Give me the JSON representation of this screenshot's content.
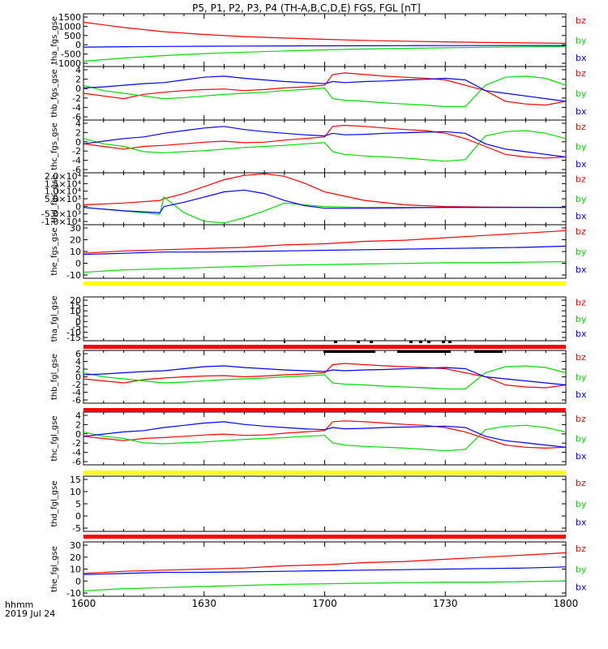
{
  "title": "P5, P1, P2, P3, P4 (TH-A,B,C,D,E) FGS, FGL [nT]",
  "time_axis": {
    "label_line1": "hhmm",
    "label_line2": "2019 Jul 24",
    "ticks": [
      "1600",
      "1630",
      "1700",
      "1730",
      "1800"
    ],
    "range_minutes": [
      0,
      120
    ]
  },
  "colors": {
    "bx": "#0000ff",
    "by": "#00dd00",
    "bz": "#ff0000",
    "yellow_bar": "#ffff00",
    "red_bar": "#ff0000",
    "black_flags": "#000000"
  },
  "chart_data": [
    {
      "type": "line",
      "ylabel": "tha_fgs_gse",
      "ylim": [
        -1000,
        1500
      ],
      "yticks": [
        "1500",
        "1000",
        "500",
        "0",
        "-500",
        "-1000"
      ],
      "legend": [
        "bz",
        "by",
        "bx"
      ],
      "x": [
        0,
        10,
        20,
        30,
        40,
        50,
        60,
        70,
        80,
        90,
        100,
        110,
        120
      ],
      "series": [
        {
          "name": "bz",
          "color": "#ff0000",
          "values": [
            1100,
            850,
            650,
            520,
            420,
            350,
            290,
            240,
            200,
            170,
            140,
            120,
            100
          ]
        },
        {
          "name": "by",
          "color": "#00dd00",
          "values": [
            -750,
            -600,
            -480,
            -390,
            -320,
            -260,
            -210,
            -170,
            -140,
            -110,
            -90,
            -70,
            -50
          ]
        },
        {
          "name": "bx",
          "color": "#0000ff",
          "values": [
            -80,
            -60,
            -50,
            -40,
            -30,
            -25,
            -20,
            -15,
            -10,
            -8,
            -6,
            -5,
            -5
          ]
        }
      ]
    },
    {
      "type": "line",
      "ylabel": "thb_fgs_gse",
      "ylim": [
        -6,
        4
      ],
      "yticks": [
        "4",
        "2",
        "0",
        "-2",
        "-4",
        "-6"
      ],
      "legend": [
        "bz",
        "by",
        "bx"
      ],
      "x": [
        0,
        5,
        10,
        15,
        20,
        25,
        30,
        35,
        40,
        45,
        50,
        55,
        60,
        62,
        65,
        70,
        75,
        80,
        85,
        90,
        95,
        100,
        105,
        110,
        115,
        120
      ],
      "series": [
        {
          "name": "bz",
          "color": "#ff0000",
          "values": [
            -1,
            -1.5,
            -2,
            -1.2,
            -0.8,
            -0.5,
            -0.3,
            -0.2,
            -0.5,
            -0.3,
            0,
            0.2,
            0.5,
            2.5,
            2.8,
            2.5,
            2.2,
            2.0,
            1.8,
            1.5,
            0.5,
            -0.5,
            -2.5,
            -3.0,
            -3.2,
            -2.5
          ]
        },
        {
          "name": "by",
          "color": "#00dd00",
          "values": [
            0.5,
            -0.5,
            -1,
            -1.5,
            -2,
            -1.8,
            -1.5,
            -1.2,
            -1.0,
            -0.8,
            -0.5,
            -0.3,
            0,
            -2.0,
            -2.3,
            -2.5,
            -2.8,
            -3.0,
            -3.2,
            -3.5,
            -3.5,
            0.5,
            2.0,
            2.2,
            1.8,
            0.5
          ]
        },
        {
          "name": "bx",
          "color": "#0000ff",
          "values": [
            0,
            0.2,
            0.5,
            0.8,
            1.0,
            1.5,
            2.0,
            2.2,
            1.8,
            1.5,
            1.2,
            1.0,
            0.8,
            1.2,
            1.0,
            1.2,
            1.3,
            1.5,
            1.6,
            1.8,
            1.5,
            -0.5,
            -1.0,
            -1.5,
            -2.0,
            -2.5
          ]
        }
      ]
    },
    {
      "type": "line",
      "ylabel": "thc_fgs_gse",
      "ylim": [
        -6,
        4
      ],
      "yticks": [
        "4",
        "2",
        "0",
        "-2",
        "-4",
        "-6"
      ],
      "legend": [
        "bz",
        "by",
        "bx"
      ],
      "x": [
        0,
        5,
        10,
        15,
        20,
        25,
        30,
        35,
        40,
        45,
        50,
        55,
        60,
        62,
        65,
        70,
        75,
        80,
        85,
        90,
        95,
        100,
        105,
        110,
        115,
        120
      ],
      "series": [
        {
          "name": "bz",
          "color": "#ff0000",
          "values": [
            -0.5,
            -1.0,
            -1.5,
            -1.0,
            -0.8,
            -0.5,
            -0.2,
            0,
            -0.3,
            -0.2,
            0.2,
            0.5,
            0.8,
            2.8,
            3.0,
            2.8,
            2.5,
            2.2,
            2.0,
            1.5,
            0.5,
            -1.0,
            -2.5,
            -3.0,
            -3.2,
            -3.0
          ]
        },
        {
          "name": "by",
          "color": "#00dd00",
          "values": [
            0.5,
            -0.5,
            -1.0,
            -2.0,
            -2.2,
            -2.0,
            -1.8,
            -1.5,
            -1.2,
            -1.0,
            -0.8,
            -0.5,
            -0.3,
            -2.0,
            -2.5,
            -2.8,
            -3.0,
            -3.2,
            -3.5,
            -3.8,
            -3.5,
            1.0,
            1.8,
            2.0,
            1.5,
            0.5
          ]
        },
        {
          "name": "bx",
          "color": "#0000ff",
          "values": [
            -0.5,
            0,
            0.5,
            0.8,
            1.5,
            2.0,
            2.5,
            2.8,
            2.2,
            1.8,
            1.5,
            1.2,
            1.0,
            1.5,
            1.2,
            1.3,
            1.5,
            1.6,
            1.7,
            1.8,
            1.5,
            -0.5,
            -1.5,
            -2.0,
            -2.5,
            -3.0
          ]
        }
      ]
    },
    {
      "type": "line",
      "ylabel": "thd_fgs_gse",
      "ylim": [
        -10000,
        20000
      ],
      "yticks": [
        "2.0×10⁴",
        "1.5×10⁴",
        "1.0×10⁴",
        "5.0×10³",
        "0",
        "-5.0×10³",
        "-1.0×10⁴"
      ],
      "legend": [
        "bz",
        "by",
        "bx"
      ],
      "x": [
        0,
        10,
        19,
        20,
        25,
        30,
        35,
        40,
        45,
        50,
        55,
        60,
        70,
        80,
        90,
        100,
        110,
        120
      ],
      "series": [
        {
          "name": "bz",
          "color": "#ff0000",
          "values": [
            1500,
            2500,
            4000,
            5000,
            8000,
            12000,
            16000,
            18500,
            19500,
            18000,
            14000,
            9000,
            4000,
            1500,
            500,
            200,
            100,
            50
          ]
        },
        {
          "name": "by",
          "color": "#00dd00",
          "values": [
            0,
            -2000,
            -4000,
            6000,
            -3000,
            -8000,
            -9000,
            -6000,
            -2000,
            2500,
            1500,
            500,
            0,
            0,
            0,
            0,
            0,
            0
          ]
        },
        {
          "name": "bx",
          "color": "#0000ff",
          "values": [
            0,
            -2000,
            -3000,
            500,
            3000,
            6000,
            9000,
            10000,
            8000,
            4000,
            1000,
            -500,
            -500,
            -200,
            0,
            0,
            0,
            0
          ]
        }
      ]
    },
    {
      "type": "line",
      "ylabel": "the_fgs_gse",
      "ylim": [
        -15,
        30
      ],
      "yticks": [
        "30",
        "20",
        "10",
        "0",
        "-10"
      ],
      "legend": [
        "bz",
        "by",
        "bx"
      ],
      "x": [
        0,
        10,
        20,
        30,
        40,
        50,
        60,
        70,
        80,
        90,
        100,
        110,
        120
      ],
      "series": [
        {
          "name": "bz",
          "color": "#ff0000",
          "values": [
            6,
            8,
            9,
            10,
            11,
            13,
            14,
            16,
            17,
            19,
            21,
            23,
            25
          ]
        },
        {
          "name": "by",
          "color": "#00dd00",
          "values": [
            -10,
            -8,
            -7,
            -6,
            -5,
            -4,
            -3.5,
            -3,
            -2.5,
            -2,
            -2,
            -1.5,
            -1
          ]
        },
        {
          "name": "bx",
          "color": "#0000ff",
          "values": [
            5,
            6,
            7,
            7,
            7.5,
            8,
            8.5,
            9,
            9.5,
            10,
            10.5,
            11,
            12
          ]
        }
      ]
    },
    {
      "type": "line",
      "ylabel": "tha_fgl_gse",
      "ylim": [
        -15,
        20
      ],
      "yticks": [
        "20",
        "15",
        "10",
        "5",
        "0",
        "-5",
        "-10",
        "-15"
      ],
      "legend": [
        "bz",
        "by",
        "bx"
      ],
      "series": []
    },
    {
      "type": "line",
      "ylabel": "thb_fgl_gse",
      "ylim": [
        -7,
        6
      ],
      "yticks": [
        "6",
        "4",
        "2",
        "0",
        "-2",
        "-4",
        "-6"
      ],
      "legend": [
        "bz",
        "by",
        "bx"
      ],
      "x": [
        0,
        5,
        10,
        15,
        20,
        25,
        30,
        35,
        40,
        45,
        50,
        55,
        60,
        62,
        65,
        70,
        75,
        80,
        85,
        90,
        95,
        100,
        105,
        110,
        115,
        120
      ],
      "series": [
        {
          "name": "bz",
          "color": "#ff0000",
          "values": [
            -1,
            -1.5,
            -2,
            -1.2,
            -0.8,
            -0.5,
            -0.3,
            -0.2,
            -0.5,
            -0.3,
            0,
            0.2,
            0.5,
            2.5,
            2.8,
            2.5,
            2.2,
            2.0,
            1.8,
            1.5,
            0.5,
            -0.5,
            -2.5,
            -3.0,
            -3.2,
            -2.5
          ]
        },
        {
          "name": "by",
          "color": "#00dd00",
          "values": [
            0.5,
            -0.5,
            -1,
            -1.5,
            -2,
            -1.8,
            -1.5,
            -1.2,
            -1.0,
            -0.8,
            -0.5,
            -0.3,
            0,
            -2.0,
            -2.3,
            -2.5,
            -2.8,
            -3.0,
            -3.2,
            -3.5,
            -3.5,
            0.5,
            2.0,
            2.2,
            1.8,
            0.5
          ]
        },
        {
          "name": "bx",
          "color": "#0000ff",
          "values": [
            0,
            0.2,
            0.5,
            0.8,
            1.0,
            1.5,
            2.0,
            2.2,
            1.8,
            1.5,
            1.2,
            1.0,
            0.8,
            1.2,
            1.0,
            1.2,
            1.3,
            1.5,
            1.6,
            1.8,
            1.5,
            -0.5,
            -1.0,
            -1.5,
            -2.0,
            -2.5
          ]
        }
      ]
    },
    {
      "type": "line",
      "ylabel": "thc_fgl_gse",
      "ylim": [
        -7,
        5
      ],
      "yticks": [
        "4",
        "2",
        "0",
        "-2",
        "-4",
        "-6"
      ],
      "legend": [
        "bz",
        "by",
        "bx"
      ],
      "x": [
        0,
        5,
        10,
        15,
        20,
        25,
        30,
        35,
        40,
        45,
        50,
        55,
        60,
        62,
        65,
        70,
        75,
        80,
        85,
        90,
        95,
        100,
        105,
        110,
        115,
        120
      ],
      "series": [
        {
          "name": "bz",
          "color": "#ff0000",
          "values": [
            -0.5,
            -1.0,
            -1.5,
            -1.0,
            -0.8,
            -0.5,
            -0.2,
            0,
            -0.3,
            -0.2,
            0.2,
            0.5,
            0.8,
            2.8,
            3.0,
            2.8,
            2.5,
            2.2,
            2.0,
            1.5,
            0.5,
            -1.0,
            -2.5,
            -3.0,
            -3.2,
            -3.0
          ]
        },
        {
          "name": "by",
          "color": "#00dd00",
          "values": [
            0.5,
            -0.5,
            -1.0,
            -2.0,
            -2.2,
            -2.0,
            -1.8,
            -1.5,
            -1.2,
            -1.0,
            -0.8,
            -0.5,
            -0.3,
            -2.0,
            -2.5,
            -2.8,
            -3.0,
            -3.2,
            -3.5,
            -3.8,
            -3.5,
            1.0,
            1.8,
            2.0,
            1.5,
            0.5
          ]
        },
        {
          "name": "bx",
          "color": "#0000ff",
          "values": [
            -0.5,
            0,
            0.5,
            0.8,
            1.5,
            2.0,
            2.5,
            2.8,
            2.2,
            1.8,
            1.5,
            1.2,
            1.0,
            1.5,
            1.2,
            1.3,
            1.5,
            1.6,
            1.7,
            1.8,
            1.5,
            -0.5,
            -1.5,
            -2.0,
            -2.5,
            -3.0
          ]
        }
      ]
    },
    {
      "type": "line",
      "ylabel": "thd_fgl_gse",
      "ylim": [
        -8,
        17
      ],
      "yticks": [
        "15",
        "10",
        "5",
        "0",
        "-5"
      ],
      "legend": [
        "bz",
        "by",
        "bx"
      ],
      "series": []
    },
    {
      "type": "line",
      "ylabel": "the_fgl_gse",
      "ylim": [
        -15,
        35
      ],
      "yticks": [
        "30",
        "20",
        "10",
        "0",
        "-10"
      ],
      "legend": [
        "bz",
        "by",
        "bx"
      ],
      "x": [
        0,
        10,
        20,
        30,
        40,
        50,
        60,
        70,
        80,
        90,
        100,
        110,
        120
      ],
      "series": [
        {
          "name": "bz",
          "color": "#ff0000",
          "values": [
            6,
            8,
            9,
            10,
            11,
            13,
            14,
            16,
            17,
            19,
            21,
            23,
            25
          ]
        },
        {
          "name": "by",
          "color": "#00dd00",
          "values": [
            -10,
            -8,
            -7,
            -6,
            -5,
            -4,
            -3.5,
            -3,
            -2.5,
            -2,
            -2,
            -1.5,
            -1
          ]
        },
        {
          "name": "bx",
          "color": "#0000ff",
          "values": [
            5,
            6,
            7,
            7,
            7.5,
            8,
            8.5,
            9,
            9.5,
            10,
            10.5,
            11,
            12
          ]
        }
      ]
    }
  ]
}
